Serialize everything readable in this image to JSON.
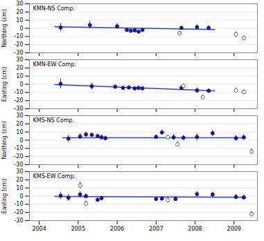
{
  "chart_data": [
    {
      "type": "scatter",
      "title": "KMN-NS Comp.",
      "ylabel": "Northing (cm)",
      "xlim": [
        2003.75,
        2009.6
      ],
      "xticks": [
        2004,
        2005,
        2006,
        2007,
        2008,
        2009
      ],
      "ylim": [
        -30,
        30
      ],
      "yticks": [
        -30,
        -20,
        -10,
        0,
        10,
        20,
        30
      ],
      "grid": true,
      "tick_labels": "y",
      "series": [
        {
          "type": "line",
          "color": "#2244cc",
          "x": [
            2004.4,
            2008.5
          ],
          "values": [
            2.0,
            -1.5
          ]
        },
        {
          "type": "scatter",
          "color": "#1111bb",
          "x": [
            2004.55,
            2005.3,
            2006.0,
            2006.25,
            2006.35,
            2006.45,
            2006.55,
            2006.65,
            2007.65,
            2008.05,
            2008.35
          ],
          "values": [
            1.0,
            4.0,
            2.5,
            -2.0,
            -3.0,
            -2.5,
            -4.0,
            -2.0,
            0.5,
            1.5,
            0.5
          ],
          "errors": [
            5.0,
            4.5,
            3.5,
            2.5,
            2.0,
            2.0,
            2.0,
            2.0,
            2.5,
            3.0,
            2.5
          ]
        },
        {
          "type": "scatter",
          "color": "#ffffff",
          "x": [
            2007.6,
            2009.05,
            2009.25
          ],
          "values": [
            -6.0,
            -7.5,
            -12.0
          ],
          "errors": [
            2.5,
            3.0,
            3.0
          ]
        }
      ]
    },
    {
      "type": "scatter",
      "title": "KMN-EW Comp.",
      "ylabel": "Easting (cm)",
      "xlim": [
        2003.75,
        2009.6
      ],
      "xticks": [
        2004,
        2005,
        2006,
        2007,
        2008,
        2009
      ],
      "ylim": [
        -30,
        30
      ],
      "yticks": [
        -30,
        -20,
        -10,
        0,
        10,
        20,
        30
      ],
      "grid": true,
      "tick_labels": "y",
      "series": [
        {
          "type": "line",
          "color": "#2244cc",
          "x": [
            2004.4,
            2008.5
          ],
          "values": [
            -0.5,
            -8.0
          ]
        },
        {
          "type": "scatter",
          "color": "#1111bb",
          "x": [
            2004.55,
            2005.35,
            2005.95,
            2006.15,
            2006.3,
            2006.45,
            2006.55,
            2006.65,
            2007.65,
            2008.05,
            2008.35
          ],
          "values": [
            0.5,
            -2.5,
            -3.0,
            -4.5,
            -4.0,
            -5.0,
            -4.5,
            -5.0,
            -4.5,
            -7.5,
            -8.0
          ],
          "errors": [
            6.0,
            4.0,
            2.5,
            2.5,
            2.0,
            2.0,
            2.0,
            2.0,
            2.5,
            3.0,
            2.5
          ]
        },
        {
          "type": "scatter",
          "color": "#ffffff",
          "x": [
            2007.7,
            2008.2,
            2009.05,
            2009.25
          ],
          "values": [
            -2.0,
            -16.0,
            -7.5,
            -9.5
          ],
          "errors": [
            2.5,
            3.0,
            3.0,
            3.0
          ]
        }
      ]
    },
    {
      "type": "scatter",
      "title": "KMS-NS Comp.",
      "ylabel": "Northing (cm)",
      "xlim": [
        2003.75,
        2009.6
      ],
      "xticks": [
        2004,
        2005,
        2006,
        2007,
        2008,
        2009
      ],
      "ylim": [
        -30,
        30
      ],
      "yticks": [
        -30,
        -20,
        -10,
        0,
        10,
        20,
        30
      ],
      "grid": true,
      "tick_labels": "y",
      "series": [
        {
          "type": "line",
          "color": "#2244cc",
          "x": [
            2004.6,
            2009.3
          ],
          "values": [
            3.0,
            3.0
          ]
        },
        {
          "type": "scatter",
          "color": "#1111bb",
          "x": [
            2004.75,
            2005.05,
            2005.2,
            2005.35,
            2005.5,
            2005.6,
            2005.7,
            2007.0,
            2007.15,
            2007.45,
            2007.7,
            2008.05,
            2008.45,
            2009.05,
            2009.25
          ],
          "values": [
            2.0,
            4.5,
            7.0,
            6.5,
            5.0,
            3.5,
            2.5,
            4.0,
            9.5,
            3.5,
            3.0,
            4.0,
            8.5,
            2.5,
            3.5
          ],
          "errors": [
            4.0,
            3.5,
            3.0,
            2.5,
            2.5,
            2.5,
            2.5,
            2.5,
            3.0,
            3.5,
            3.0,
            4.0,
            3.5,
            3.5,
            3.5
          ]
        },
        {
          "type": "scatter",
          "color": "#ffffff",
          "x": [
            2007.3,
            2007.55,
            2009.45
          ],
          "values": [
            3.5,
            -5.0,
            -14.0
          ],
          "errors": [
            3.0,
            3.0,
            3.5
          ]
        }
      ]
    },
    {
      "type": "scatter",
      "title": "KMS-EW Comp.",
      "ylabel": "Easting (cm)",
      "xlim": [
        2003.75,
        2009.6
      ],
      "xticks": [
        2004,
        2005,
        2006,
        2007,
        2008,
        2009
      ],
      "ylim": [
        -30,
        30
      ],
      "yticks": [
        -30,
        -20,
        -10,
        0,
        10,
        20,
        30
      ],
      "grid": true,
      "series": [
        {
          "type": "line",
          "color": "#2244cc",
          "x": [
            2004.4,
            2009.3
          ],
          "values": [
            -0.5,
            -1.5
          ]
        },
        {
          "type": "scatter",
          "color": "#1111bb",
          "x": [
            2004.55,
            2004.75,
            2005.05,
            2005.2,
            2005.5,
            2005.6,
            2007.0,
            2007.15,
            2007.5,
            2008.05,
            2008.45,
            2009.05,
            2009.25
          ],
          "values": [
            0.5,
            -2.0,
            2.0,
            0.0,
            -4.5,
            -2.5,
            -3.5,
            -3.0,
            -3.5,
            2.5,
            2.0,
            -1.0,
            -1.5
          ],
          "errors": [
            4.5,
            4.0,
            3.5,
            3.0,
            2.5,
            2.5,
            2.5,
            2.5,
            3.0,
            3.0,
            3.0,
            3.0,
            3.0
          ]
        },
        {
          "type": "scatter",
          "color": "#ffffff",
          "x": [
            2005.05,
            2005.2,
            2007.3,
            2009.45
          ],
          "values": [
            13.0,
            -9.0,
            -5.0,
            -22.0
          ],
          "errors": [
            4.0,
            3.0,
            3.0,
            3.5
          ]
        }
      ]
    }
  ]
}
